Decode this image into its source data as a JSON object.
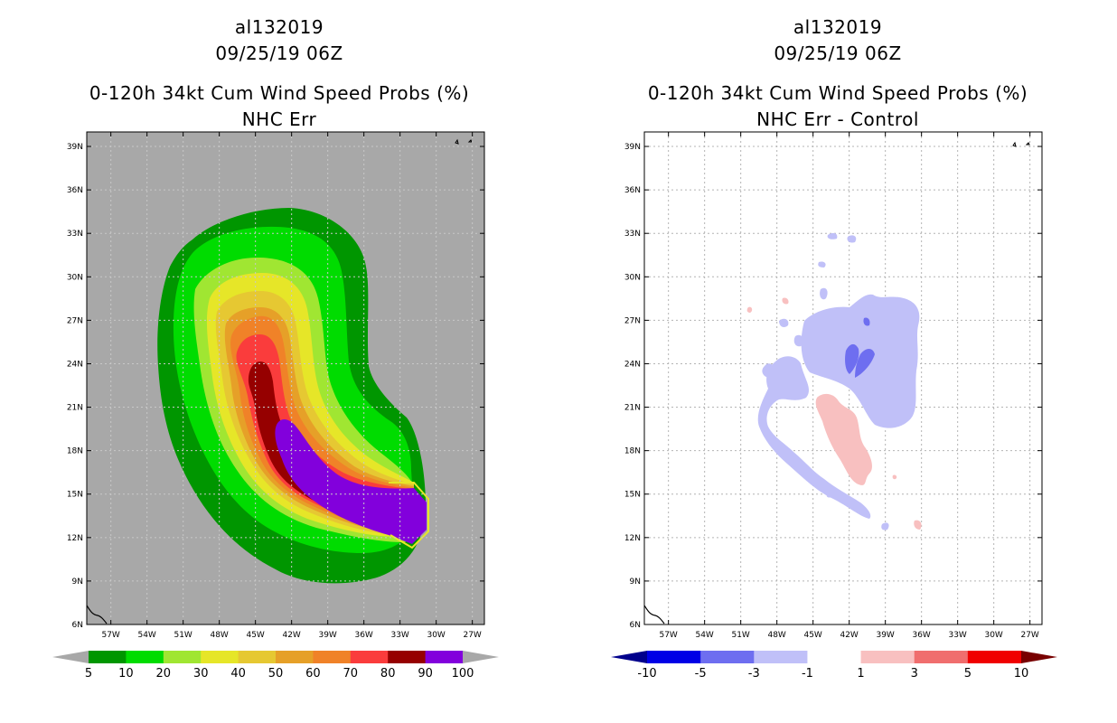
{
  "panels": [
    {
      "id": "left",
      "title_line1": "al132019",
      "title_line2": "09/25/19 06Z",
      "title_line3": "0-120h 34kt Cum Wind Speed Probs (%)",
      "title_line4": "NHC Err"
    },
    {
      "id": "right",
      "title_line1": "al132019",
      "title_line2": "09/25/19 06Z",
      "title_line3": "0-120h 34kt Cum Wind Speed Probs (%)",
      "title_line4": "NHC Err - Control"
    }
  ],
  "chart_data": [
    {
      "type": "filled-contour-map",
      "title": "0-120h 34kt Cum Wind Speed Probs (%)",
      "subtitle": "NHC Err",
      "storm_id": "al132019",
      "valid_time": "09/25/19 06Z",
      "xlim": [
        -59,
        -26
      ],
      "ylim": [
        6,
        40
      ],
      "x_ticks": [
        "57W",
        "54W",
        "51W",
        "48W",
        "45W",
        "42W",
        "39W",
        "36W",
        "33W",
        "30W",
        "27W"
      ],
      "y_ticks": [
        "6N",
        "9N",
        "12N",
        "15N",
        "18N",
        "21N",
        "24N",
        "27N",
        "30N",
        "33N",
        "36N",
        "39N"
      ],
      "legend_levels": [
        "5",
        "10",
        "20",
        "30",
        "40",
        "50",
        "60",
        "70",
        "80",
        "90",
        "100"
      ],
      "legend_colors": [
        "#a8a8a8",
        "#009600",
        "#00dc00",
        "#a0e632",
        "#e6e628",
        "#e6c832",
        "#e6a028",
        "#f08228",
        "#fa3c3c",
        "#960000",
        "#8200dc",
        "#a8a8a8"
      ],
      "background_color": "#a8a8a8"
    },
    {
      "type": "filled-contour-map",
      "title": "0-120h 34kt Cum Wind Speed Probs (%)",
      "subtitle": "NHC Err - Control",
      "storm_id": "al132019",
      "valid_time": "09/25/19 06Z",
      "xlim": [
        -59,
        -26
      ],
      "ylim": [
        6,
        40
      ],
      "x_ticks": [
        "57W",
        "54W",
        "51W",
        "48W",
        "45W",
        "42W",
        "39W",
        "36W",
        "33W",
        "30W",
        "27W"
      ],
      "y_ticks": [
        "6N",
        "9N",
        "12N",
        "15N",
        "18N",
        "21N",
        "24N",
        "27N",
        "30N",
        "33N",
        "36N",
        "39N"
      ],
      "legend_levels": [
        "-10",
        "-5",
        "-3",
        "-1",
        "1",
        "3",
        "5",
        "10"
      ],
      "legend_colors": [
        "#00008c",
        "#0000e6",
        "#6e6ef0",
        "#c0c0f8",
        "#ffffff",
        "#f8c0c0",
        "#f06e6e",
        "#f00000",
        "#780000"
      ],
      "background_color": "#ffffff"
    }
  ]
}
